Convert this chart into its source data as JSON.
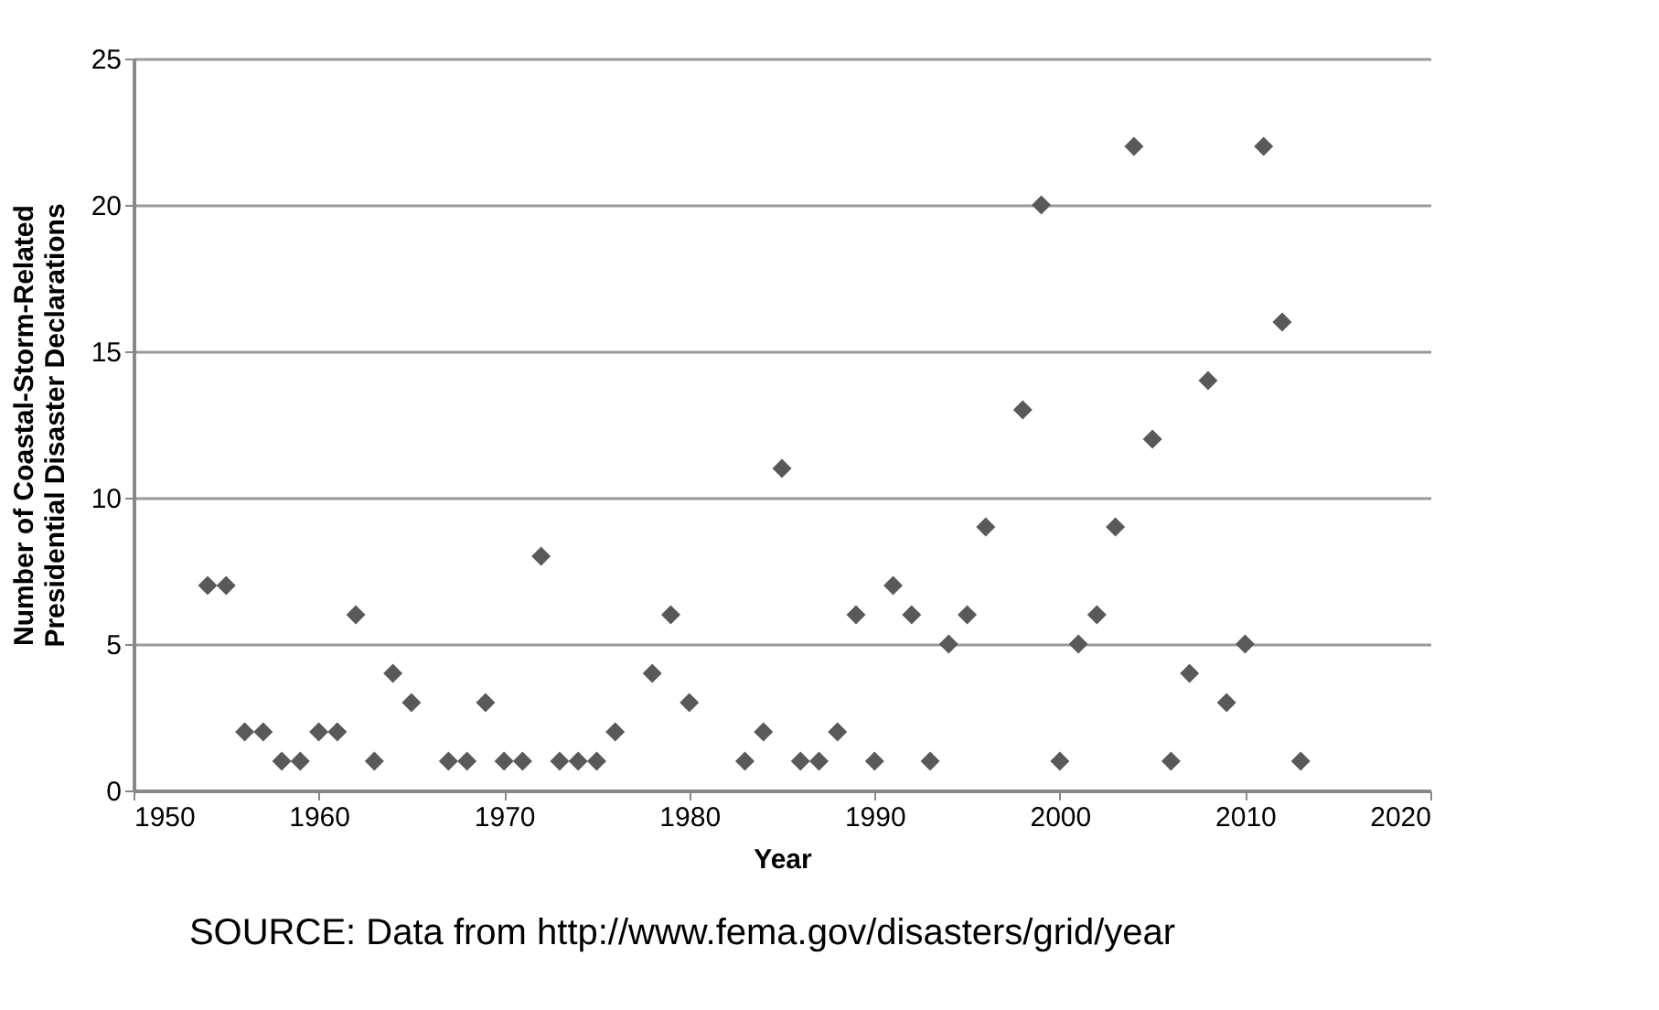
{
  "chart_data": {
    "type": "scatter",
    "xlabel": "Year",
    "ylabel": "Number of Coastal-Storm-Related\nPresidential Disaster Declarations",
    "x": [
      1954,
      1955,
      1956,
      1957,
      1958,
      1959,
      1960,
      1961,
      1962,
      1963,
      1964,
      1965,
      1967,
      1968,
      1969,
      1970,
      1971,
      1972,
      1973,
      1974,
      1975,
      1976,
      1978,
      1979,
      1980,
      1983,
      1984,
      1985,
      1986,
      1987,
      1988,
      1989,
      1990,
      1991,
      1992,
      1993,
      1994,
      1995,
      1996,
      1998,
      1999,
      2000,
      2001,
      2002,
      2003,
      2004,
      2005,
      2006,
      2007,
      2008,
      2009,
      2010,
      2011,
      2012,
      2013
    ],
    "series": [
      {
        "color": "#595959",
        "values": [
          7,
          7,
          2,
          2,
          1,
          1,
          2,
          2,
          6,
          1,
          4,
          3,
          1,
          1,
          3,
          1,
          1,
          8,
          1,
          1,
          1,
          2,
          4,
          6,
          3,
          1,
          2,
          11,
          1,
          1,
          2,
          6,
          1,
          7,
          6,
          1,
          5,
          6,
          9,
          13,
          20,
          1,
          5,
          6,
          9,
          22,
          12,
          1,
          4,
          14,
          3,
          5,
          22,
          16,
          1
        ]
      }
    ],
    "xlim": [
      1950,
      2020
    ],
    "xticks": [
      1950,
      1960,
      1970,
      1980,
      1990,
      2000,
      2010,
      2020
    ],
    "ylim": [
      0,
      25
    ],
    "yticks": [
      0,
      5,
      10,
      15,
      20,
      25
    ],
    "grid": "y",
    "marker": "diamond",
    "legend": false,
    "annotations": [
      "SOURCE: Data from http://www.fema.gov/disasters/grid/year"
    ]
  }
}
